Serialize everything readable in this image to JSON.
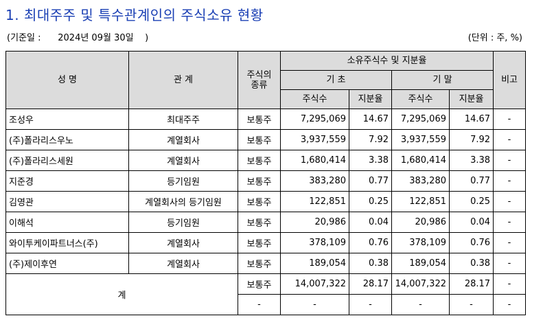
{
  "title": "1. 최대주주 및 특수관계인의 주식소유 현황",
  "meta": {
    "basis_date": "(기준일 :      2024년 09월 30일    )",
    "unit": "(단위 : 주, %)"
  },
  "headers": {
    "name": "성 명",
    "relation": "관 계",
    "stock_type": "주식의\n종류",
    "ownership": "소유주식수 및 지분율",
    "begin": "기 초",
    "end": "기 말",
    "shares": "주식수",
    "ratio": "지분율",
    "note": "비고"
  },
  "rows": [
    {
      "name": "조성우",
      "relation": "최대주주",
      "type": "보통주",
      "begin_shares": "7,295,069",
      "begin_ratio": "14.67",
      "end_shares": "7,295,069",
      "end_ratio": "14.67",
      "note": "-"
    },
    {
      "name": "(주)폴라리스우노",
      "relation": "계열회사",
      "type": "보통주",
      "begin_shares": "3,937,559",
      "begin_ratio": "7.92",
      "end_shares": "3,937,559",
      "end_ratio": "7.92",
      "note": "-"
    },
    {
      "name": "(주)폴라리스세원",
      "relation": "계열회사",
      "type": "보통주",
      "begin_shares": "1,680,414",
      "begin_ratio": "3.38",
      "end_shares": "1,680,414",
      "end_ratio": "3.38",
      "note": "-"
    },
    {
      "name": "지준경",
      "relation": "등기임원",
      "type": "보통주",
      "begin_shares": "383,280",
      "begin_ratio": "0.77",
      "end_shares": "383,280",
      "end_ratio": "0.77",
      "note": "-"
    },
    {
      "name": "김영관",
      "relation": "계열회사의 등기임원",
      "type": "보통주",
      "begin_shares": "122,851",
      "begin_ratio": "0.25",
      "end_shares": "122,851",
      "end_ratio": "0.25",
      "note": "-"
    },
    {
      "name": "이해석",
      "relation": "등기임원",
      "type": "보통주",
      "begin_shares": "20,986",
      "begin_ratio": "0.04",
      "end_shares": "20,986",
      "end_ratio": "0.04",
      "note": "-"
    },
    {
      "name": "와이투케이파트너스(주)",
      "relation": "계열회사",
      "type": "보통주",
      "begin_shares": "378,109",
      "begin_ratio": "0.76",
      "end_shares": "378,109",
      "end_ratio": "0.76",
      "note": "-"
    },
    {
      "name": "(주)제이후연",
      "relation": "계열회사",
      "type": "보통주",
      "begin_shares": "189,054",
      "begin_ratio": "0.38",
      "end_shares": "189,054",
      "end_ratio": "0.38",
      "note": "-"
    }
  ],
  "total": {
    "label": "계",
    "rows": [
      {
        "type": "보통주",
        "begin_shares": "14,007,322",
        "begin_ratio": "28.17",
        "end_shares": "14,007,322",
        "end_ratio": "28.17",
        "note": "-"
      },
      {
        "type": "-",
        "begin_shares": "-",
        "begin_ratio": "-",
        "end_shares": "-",
        "end_ratio": "-",
        "note": "-"
      }
    ]
  }
}
